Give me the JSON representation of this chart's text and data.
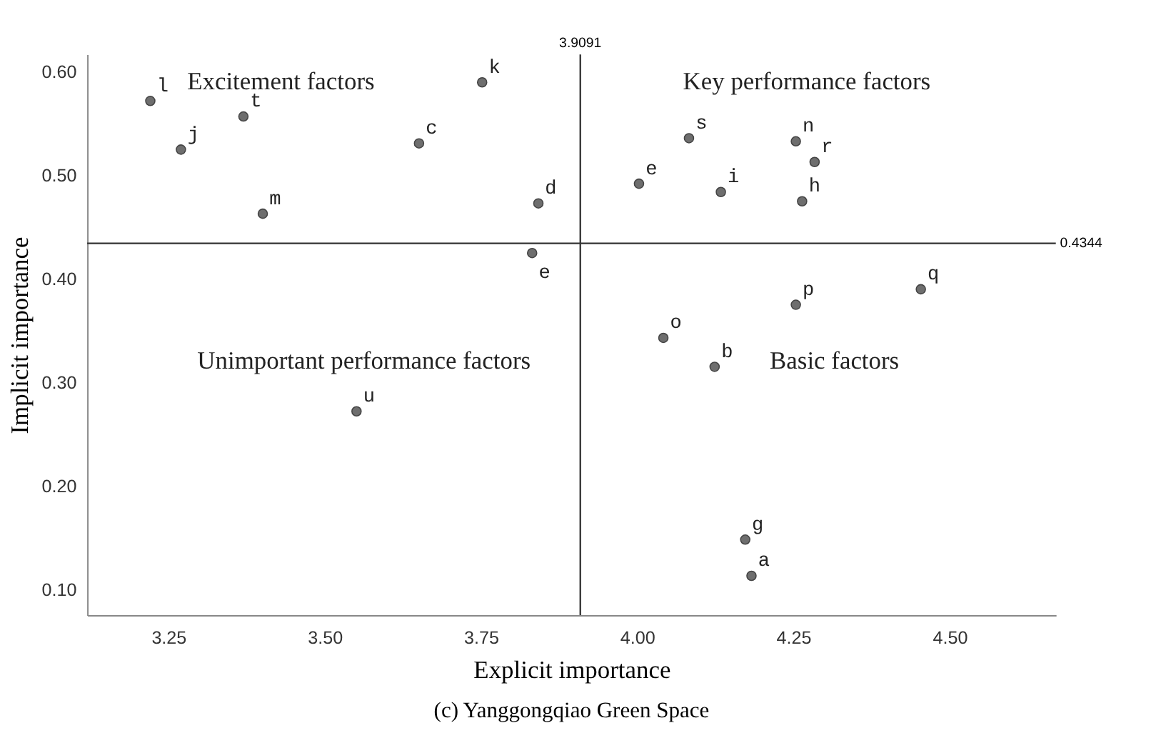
{
  "chart_data": {
    "type": "scatter",
    "title": "(c) Yanggongqiao Green Space",
    "xlabel": "Explicit importance",
    "ylabel": "Implicit importance",
    "x": [
      3.221,
      3.37,
      3.27,
      3.401,
      3.752,
      3.651,
      3.842,
      3.832,
      3.551,
      4.083,
      4.254,
      4.284,
      4.003,
      4.134,
      4.264,
      4.454,
      4.254,
      4.042,
      4.124,
      4.173,
      4.183
    ],
    "series": [
      {
        "color": "#6e6e6e",
        "values": [
          0.572,
          0.557,
          0.525,
          0.463,
          0.59,
          0.531,
          0.473,
          0.425,
          0.272,
          0.536,
          0.533,
          0.513,
          0.492,
          0.484,
          0.475,
          0.39,
          0.375,
          0.343,
          0.315,
          0.148,
          0.113
        ]
      }
    ],
    "marker": "circle",
    "grid": false,
    "xlim": [
      3.12,
      4.67
    ],
    "xticks": [
      {
        "value": 3.25,
        "label": "3.25"
      },
      {
        "value": 3.5,
        "label": "3.50"
      },
      {
        "value": 3.75,
        "label": "3.75"
      },
      {
        "value": 4.0,
        "label": "4.00"
      },
      {
        "value": 4.25,
        "label": "4.25"
      },
      {
        "value": 4.5,
        "label": "4.50"
      }
    ],
    "ylim": [
      0.075,
      0.617
    ],
    "yticks": [
      {
        "value": 0.1,
        "label": "0.10"
      },
      {
        "value": 0.2,
        "label": "0.20"
      },
      {
        "value": 0.3,
        "label": "0.30"
      },
      {
        "value": 0.4,
        "label": "0.40"
      },
      {
        "value": 0.5,
        "label": "0.50"
      },
      {
        "value": 0.6,
        "label": "0.60"
      }
    ],
    "ref_lines": [
      {
        "axis": "x",
        "value": 3.9091,
        "label": "3.9091",
        "color": "#333333"
      },
      {
        "axis": "y",
        "value": 0.4344,
        "label": "0.4344",
        "color": "#333333"
      }
    ],
    "annotations": [
      "Excitement factors",
      "Key performance factors",
      "Unimportant performance factors",
      "Basic factors",
      {
        "text": "l",
        "x": 3.221,
        "y": 0.572
      },
      {
        "text": "t",
        "x": 3.37,
        "y": 0.557
      },
      {
        "text": "j",
        "x": 3.27,
        "y": 0.525
      },
      {
        "text": "m",
        "x": 3.401,
        "y": 0.463
      },
      {
        "text": "k",
        "x": 3.752,
        "y": 0.59
      },
      {
        "text": "c",
        "x": 3.651,
        "y": 0.531
      },
      {
        "text": "d",
        "x": 3.842,
        "y": 0.473
      },
      {
        "text": "e",
        "x": 3.832,
        "y": 0.425
      },
      {
        "text": "u",
        "x": 3.551,
        "y": 0.272
      },
      {
        "text": "s",
        "x": 4.083,
        "y": 0.536
      },
      {
        "text": "n",
        "x": 4.254,
        "y": 0.533
      },
      {
        "text": "r",
        "x": 4.284,
        "y": 0.513
      },
      {
        "text": "e",
        "x": 4.003,
        "y": 0.492
      },
      {
        "text": "i",
        "x": 4.134,
        "y": 0.484
      },
      {
        "text": "h",
        "x": 4.264,
        "y": 0.475
      },
      {
        "text": "q",
        "x": 4.454,
        "y": 0.39
      },
      {
        "text": "p",
        "x": 4.254,
        "y": 0.375
      },
      {
        "text": "o",
        "x": 4.042,
        "y": 0.343
      },
      {
        "text": "b",
        "x": 4.124,
        "y": 0.315
      },
      {
        "text": "g",
        "x": 4.173,
        "y": 0.148
      },
      {
        "text": "a",
        "x": 4.183,
        "y": 0.113
      }
    ]
  }
}
